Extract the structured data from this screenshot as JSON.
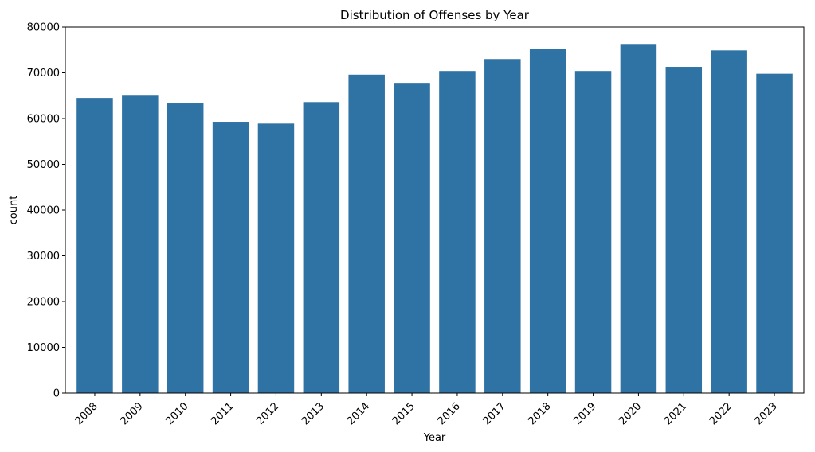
{
  "chart_data": {
    "type": "bar",
    "title": "Distribution of Offenses by Year",
    "xlabel": "Year",
    "ylabel": "count",
    "categories": [
      "2008",
      "2009",
      "2010",
      "2011",
      "2012",
      "2013",
      "2014",
      "2015",
      "2016",
      "2017",
      "2018",
      "2019",
      "2020",
      "2021",
      "2022",
      "2023"
    ],
    "values": [
      64500,
      65000,
      63300,
      59300,
      58900,
      63600,
      69600,
      67800,
      70400,
      73000,
      75300,
      70400,
      76300,
      71300,
      74900,
      69800
    ],
    "ylim": [
      0,
      80000
    ],
    "yticks": [
      0,
      10000,
      20000,
      30000,
      40000,
      50000,
      60000,
      70000,
      80000
    ],
    "ytick_labels": [
      "0",
      "10000",
      "20000",
      "30000",
      "40000",
      "50000",
      "60000",
      "70000",
      "80000"
    ],
    "grid": false,
    "bar_color": "#2f72a4",
    "x_tick_rotation_deg": 45
  }
}
